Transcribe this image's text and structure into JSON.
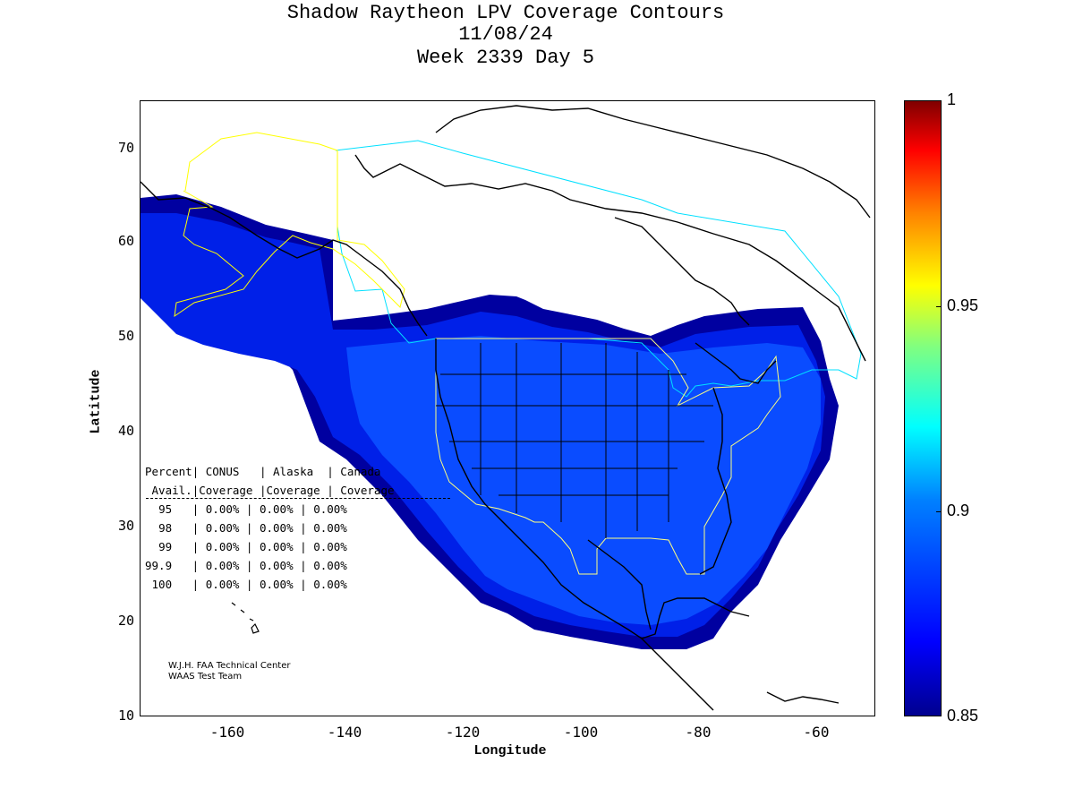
{
  "title": {
    "line1": "Shadow Raytheon LPV Coverage Contours",
    "line2": "11/08/24",
    "line3": "Week 2339 Day 5"
  },
  "axes": {
    "xlabel": "Longitude",
    "ylabel": "Latitude",
    "xticks": [
      "-160",
      "-140",
      "-120",
      "-100",
      "-80",
      "-60"
    ],
    "yticks": [
      "70",
      "60",
      "50",
      "40",
      "30",
      "20",
      "10"
    ],
    "xlim": [
      -175,
      -50
    ],
    "ylim": [
      10,
      75
    ]
  },
  "colorbar": {
    "ticks": [
      "1",
      "0.95",
      "0.9",
      "0.85"
    ],
    "range": [
      0.85,
      1
    ],
    "colormap": "jet"
  },
  "stats_table": {
    "header1": [
      "Percent",
      "CONUS",
      "Alaska",
      "Canada"
    ],
    "header2": [
      "Avail.",
      "Coverage",
      "Coverage",
      "Coverage"
    ],
    "rows": [
      {
        "pct": "95",
        "conus": "0.00%",
        "alaska": "0.00%",
        "canada": "0.00%"
      },
      {
        "pct": "98",
        "conus": "0.00%",
        "alaska": "0.00%",
        "canada": "0.00%"
      },
      {
        "pct": "99",
        "conus": "0.00%",
        "alaska": "0.00%",
        "canada": "0.00%"
      },
      {
        "pct": "99.9",
        "conus": "0.00%",
        "alaska": "0.00%",
        "canada": "0.00%"
      },
      {
        "pct": "100",
        "conus": "0.00%",
        "alaska": "0.00%",
        "canada": "0.00%"
      }
    ]
  },
  "credits": {
    "line1": "W.J.H. FAA Technical Center",
    "line2": "WAAS Test Team"
  },
  "colors": {
    "coverage_outer": "#0000a0",
    "coverage_mid": "#0010e0",
    "coverage_inner": "#0040ff",
    "conus_boundary": "#ffff80",
    "alaska_boundary": "#ffff00",
    "canada_boundary": "#00e0ff"
  }
}
